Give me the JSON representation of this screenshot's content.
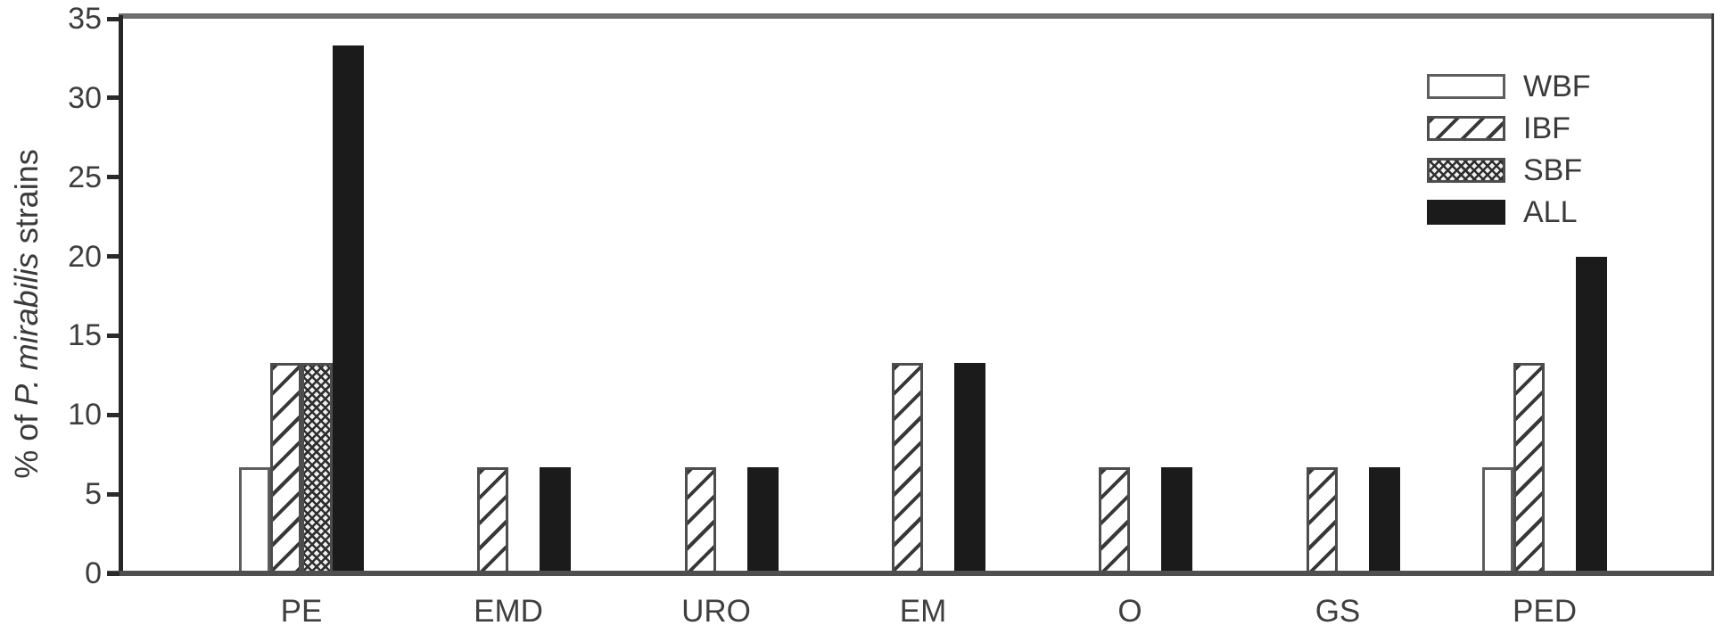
{
  "figure": {
    "ylabel": {
      "prefix": "% of ",
      "italic": "P. mirabilis",
      "suffix": " strains"
    },
    "legend": [
      {
        "label": "WBF",
        "pattern": "wbf"
      },
      {
        "label": "IBF",
        "pattern": "ibf"
      },
      {
        "label": "SBF",
        "pattern": "sbf"
      },
      {
        "label": "ALL",
        "pattern": "all"
      }
    ]
  },
  "chart_data": {
    "type": "bar",
    "title": "",
    "categories": [
      "PE",
      "EMD",
      "URO",
      "EM",
      "O",
      "GS",
      "PED"
    ],
    "series": [
      {
        "name": "WBF",
        "pattern": "wbf",
        "fill": "white-outlined",
        "values": [
          6.7,
          0,
          0,
          0,
          0,
          0,
          6.7
        ]
      },
      {
        "name": "IBF",
        "pattern": "ibf",
        "fill": "diagonal-hatch",
        "values": [
          13.3,
          6.7,
          6.7,
          13.3,
          6.7,
          6.7,
          13.3
        ]
      },
      {
        "name": "SBF",
        "pattern": "sbf",
        "fill": "dense-cross-hatch",
        "values": [
          13.3,
          0,
          0,
          0,
          0,
          0,
          0
        ]
      },
      {
        "name": "ALL",
        "pattern": "all",
        "fill": "solid-black",
        "values": [
          33.3,
          6.7,
          6.7,
          13.3,
          6.7,
          6.7,
          20.0
        ]
      }
    ],
    "xlabel": "",
    "ylabel": "% of P. mirabilis strains",
    "ylim": [
      0,
      35
    ],
    "yticks": [
      0,
      5,
      10,
      15,
      20,
      25,
      30,
      35
    ],
    "grid": false,
    "legend_position": "top-right",
    "colors": {
      "bar_black": "#1b1b1b",
      "axis": "#262626",
      "frame_gray": "#6e6e6e",
      "text": "#3d3d3d"
    }
  }
}
